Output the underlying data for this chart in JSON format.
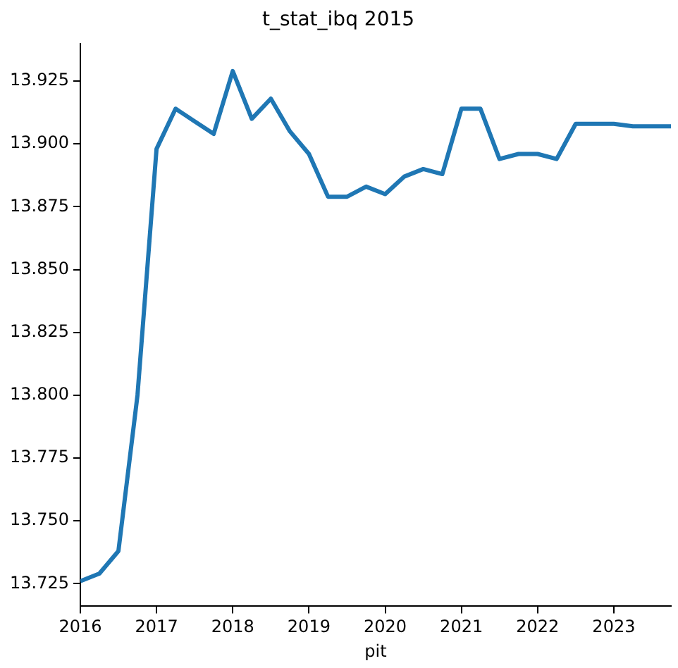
{
  "chart_data": {
    "type": "line",
    "title": "t_stat_ibq 2015",
    "xlabel": "pit",
    "x": [
      "2016-01",
      "2016-04",
      "2016-07",
      "2016-10",
      "2017-01",
      "2017-04",
      "2017-07",
      "2017-10",
      "2018-01",
      "2018-04",
      "2018-07",
      "2018-10",
      "2019-01",
      "2019-04",
      "2019-07",
      "2019-10",
      "2020-01",
      "2020-04",
      "2020-07",
      "2020-10",
      "2021-01",
      "2021-04",
      "2021-07",
      "2021-10",
      "2022-01",
      "2022-04",
      "2022-07",
      "2022-10",
      "2023-01",
      "2023-04",
      "2023-07",
      "2023-10"
    ],
    "series": [
      {
        "color": "#1f77b4",
        "values": [
          13.726,
          13.729,
          13.738,
          13.8,
          13.898,
          13.914,
          13.909,
          13.904,
          13.929,
          13.91,
          13.918,
          13.905,
          13.896,
          13.879,
          13.879,
          13.883,
          13.88,
          13.887,
          13.89,
          13.888,
          13.914,
          13.914,
          13.894,
          13.896,
          13.896,
          13.894,
          13.908,
          13.908,
          13.908,
          13.907,
          13.907,
          13.907
        ]
      }
    ],
    "xlim": [
      "2016-01",
      "2023-10"
    ],
    "xticks": [
      "2016",
      "2017",
      "2018",
      "2019",
      "2020",
      "2021",
      "2022",
      "2023"
    ],
    "ylim": [
      13.716,
      13.94
    ],
    "yticks": [
      {
        "value": 13.725,
        "label": "13.725"
      },
      {
        "value": 13.75,
        "label": "13.750"
      },
      {
        "value": 13.775,
        "label": "13.775"
      },
      {
        "value": 13.8,
        "label": "13.800"
      },
      {
        "value": 13.825,
        "label": "13.825"
      },
      {
        "value": 13.85,
        "label": "13.850"
      },
      {
        "value": 13.875,
        "label": "13.875"
      },
      {
        "value": 13.9,
        "label": "13.900"
      },
      {
        "value": 13.925,
        "label": "13.925"
      }
    ],
    "grid": false,
    "legend": false
  }
}
